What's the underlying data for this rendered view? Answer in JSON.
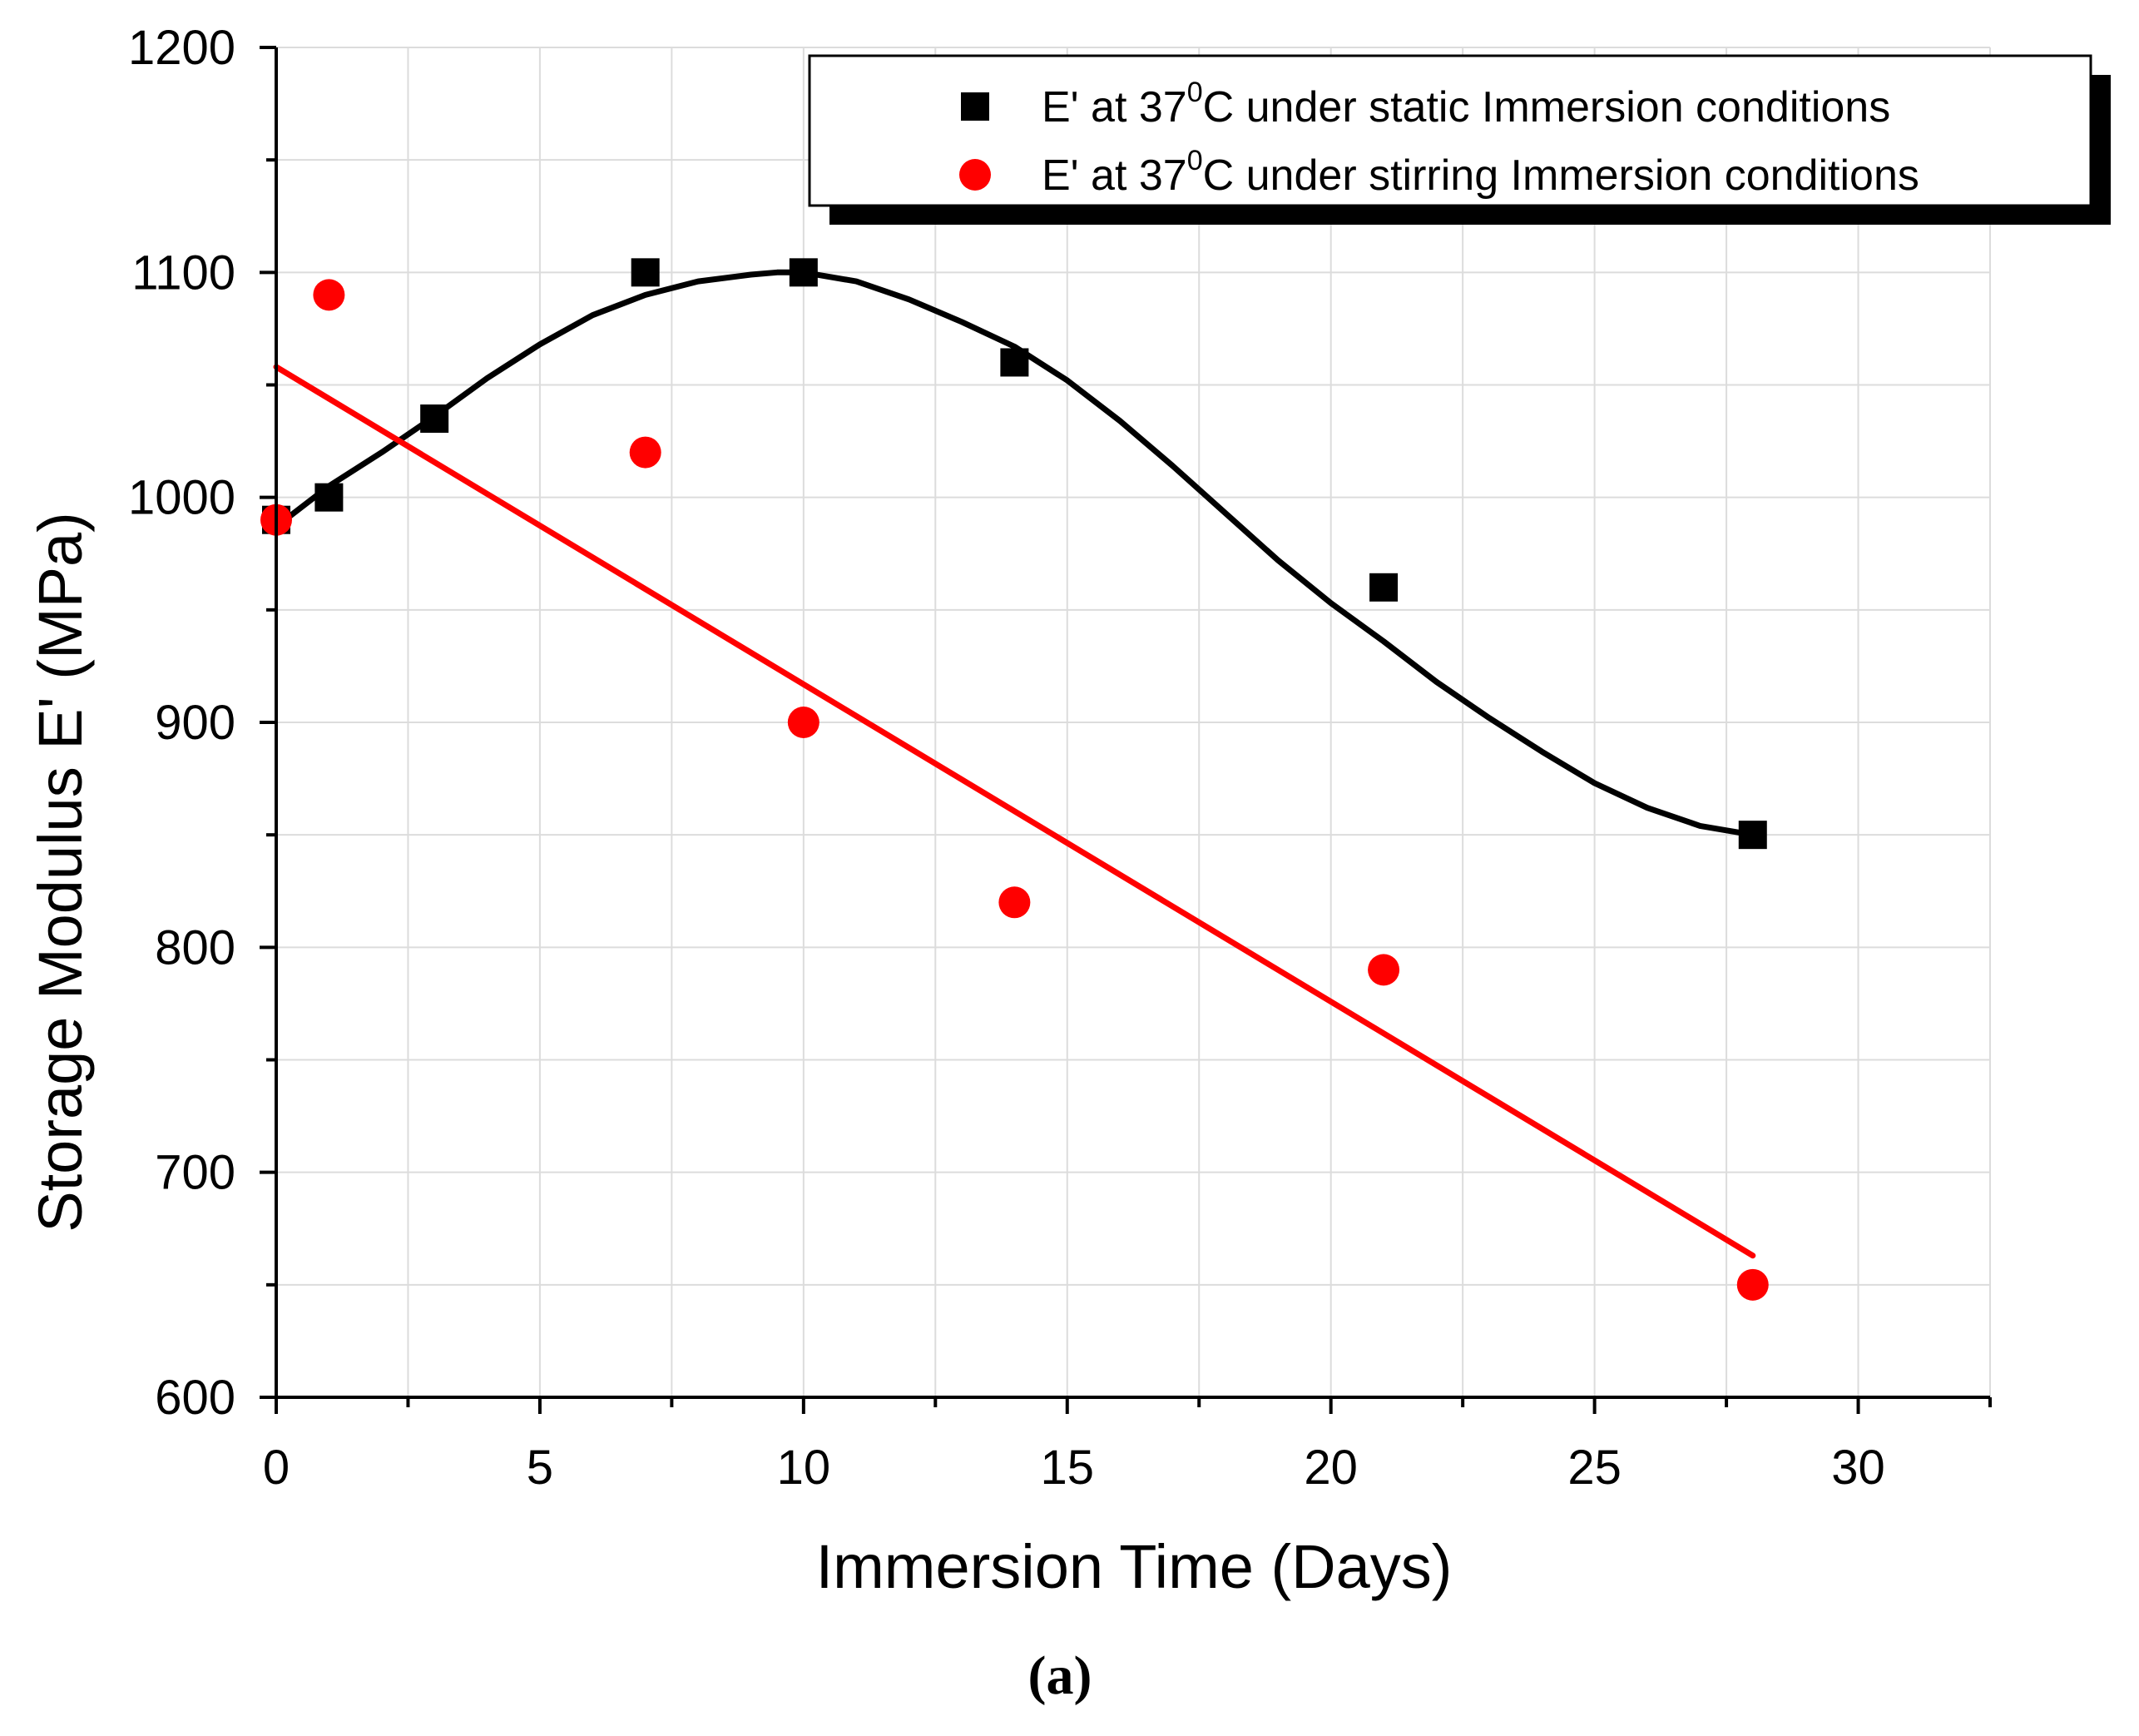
{
  "chart_data": {
    "type": "scatter",
    "xlabel": "Immersion Time (Days)",
    "ylabel": "Storage Modulus E' (MPa)",
    "xlim": [
      0,
      32.5
    ],
    "ylim": [
      600,
      1200
    ],
    "x_major_ticks": [
      0,
      5,
      10,
      15,
      20,
      25,
      30
    ],
    "x_tick_labels": [
      "0",
      "5",
      "10",
      "15",
      "20",
      "25",
      "30"
    ],
    "y_major_ticks": [
      600,
      700,
      800,
      900,
      1000,
      1100,
      1200
    ],
    "y_tick_labels": [
      "600",
      "700",
      "800",
      "900",
      "1000",
      "1100",
      "1200"
    ],
    "grid": true,
    "legend_position": "top-right",
    "series": [
      {
        "name": "E' at 37⁰C under static Immersion conditions",
        "legend_prefix": "E' at 37",
        "legend_sup": "0",
        "legend_suffix": "C under static Immersion conditions",
        "marker": "square",
        "color": "#000000",
        "x": [
          0,
          1,
          3,
          7,
          10,
          14,
          21,
          28
        ],
        "y": [
          990,
          1000,
          1035,
          1100,
          1100,
          1060,
          960,
          850
        ],
        "fit": {
          "type": "smooth",
          "x": [
            0,
            1,
            2,
            3,
            4,
            5,
            6,
            7,
            8,
            9,
            9.5,
            10,
            11,
            12,
            13,
            14,
            15,
            16,
            17,
            18,
            19,
            20,
            21,
            22,
            23,
            24,
            25,
            26,
            27,
            28
          ],
          "y": [
            987,
            1005,
            1020,
            1036,
            1053,
            1068,
            1081,
            1090,
            1096,
            1099,
            1100,
            1100,
            1096,
            1088,
            1078,
            1067,
            1052,
            1034,
            1014,
            993,
            972,
            953,
            936,
            918,
            902,
            887,
            873,
            862,
            854,
            850
          ]
        }
      },
      {
        "name": "E' at 37⁰C under stirring Immersion conditions",
        "legend_prefix": "E' at 37",
        "legend_sup": "0",
        "legend_suffix": "C under stirring Immersion conditions",
        "marker": "circle",
        "color": "#ff0000",
        "x": [
          0,
          1,
          7,
          10,
          14,
          21,
          28
        ],
        "y": [
          990,
          1090,
          1020,
          900,
          820,
          790,
          650
        ],
        "fit": {
          "type": "linear",
          "x": [
            0,
            28
          ],
          "y": [
            1058,
            663
          ]
        }
      }
    ],
    "panel_label": "(a)"
  }
}
